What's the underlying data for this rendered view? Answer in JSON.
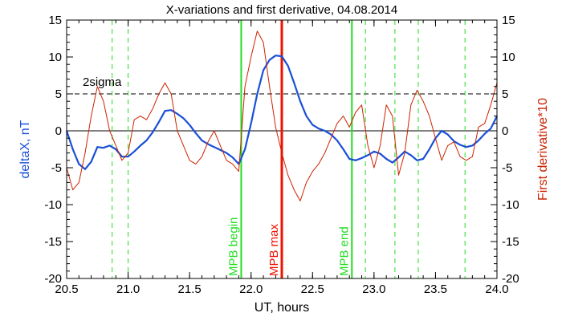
{
  "chart_data": {
    "type": "line",
    "title": "X-variations and first derivative, 04.08.2014",
    "xlabel": "UT, hours",
    "ylabel_left": "deltaX, nT",
    "ylabel_right": "First derivative*10",
    "xlim": [
      20.5,
      24.0
    ],
    "ylim": [
      -20,
      15
    ],
    "x_ticks": [
      "20.5",
      "21.0",
      "21.5",
      "22.0",
      "22.5",
      "23.0",
      "23.5",
      "24.0"
    ],
    "y_ticks": [
      "15",
      "10",
      "5",
      "0",
      "-5",
      "-10",
      "-15",
      "-20"
    ],
    "colors": {
      "deltaX": "#1a4fd6",
      "derivative": "#cc2200",
      "mpb_lines": "#22dd22",
      "mpb_max": "#ee1100",
      "axes": "#000000"
    },
    "sigma_level": 5,
    "sigma_label": "2sigma",
    "zero_line": 0,
    "series": [
      {
        "key": "deltaX",
        "axis": "left",
        "x": [
          20.5,
          20.55,
          20.6,
          20.65,
          20.7,
          20.75,
          20.8,
          20.85,
          20.9,
          20.95,
          21.0,
          21.05,
          21.1,
          21.15,
          21.2,
          21.25,
          21.3,
          21.35,
          21.4,
          21.45,
          21.5,
          21.55,
          21.6,
          21.65,
          21.7,
          21.75,
          21.8,
          21.85,
          21.9,
          21.95,
          22.0,
          22.05,
          22.1,
          22.15,
          22.2,
          22.25,
          22.3,
          22.35,
          22.4,
          22.45,
          22.5,
          22.55,
          22.6,
          22.65,
          22.7,
          22.75,
          22.8,
          22.85,
          22.9,
          22.95,
          23.0,
          23.05,
          23.1,
          23.15,
          23.2,
          23.25,
          23.3,
          23.35,
          23.4,
          23.45,
          23.5,
          23.55,
          23.6,
          23.65,
          23.7,
          23.75,
          23.8,
          23.85,
          23.9,
          23.95,
          24.0
        ],
        "values": [
          0.0,
          -2.5,
          -4.5,
          -5.2,
          -4.2,
          -2.2,
          -2.3,
          -2.0,
          -2.5,
          -3.5,
          -3.5,
          -2.8,
          -2.0,
          -1.3,
          -0.2,
          1.2,
          2.7,
          2.8,
          2.3,
          1.7,
          0.8,
          -0.3,
          -1.3,
          -1.8,
          -2.2,
          -2.6,
          -3.0,
          -3.6,
          -4.5,
          -2.5,
          1.0,
          5.0,
          8.2,
          9.6,
          10.2,
          10.1,
          8.8,
          6.5,
          4.0,
          2.0,
          0.8,
          0.3,
          0.0,
          -0.5,
          -1.3,
          -2.5,
          -3.8,
          -4.0,
          -3.7,
          -3.3,
          -2.8,
          -3.1,
          -3.8,
          -4.3,
          -3.6,
          -2.8,
          -3.3,
          -4.0,
          -3.8,
          -2.5,
          -1.0,
          0.0,
          -0.5,
          -1.4,
          -1.9,
          -2.2,
          -2.0,
          -1.3,
          -0.4,
          0.3,
          2.0
        ]
      },
      {
        "key": "derivative",
        "axis": "right",
        "x": [
          20.5,
          20.55,
          20.6,
          20.65,
          20.7,
          20.75,
          20.8,
          20.85,
          20.9,
          20.95,
          21.0,
          21.05,
          21.1,
          21.15,
          21.2,
          21.25,
          21.3,
          21.35,
          21.4,
          21.45,
          21.5,
          21.55,
          21.6,
          21.65,
          21.7,
          21.75,
          21.8,
          21.85,
          21.9,
          21.95,
          22.0,
          22.05,
          22.1,
          22.15,
          22.2,
          22.25,
          22.3,
          22.35,
          22.4,
          22.45,
          22.5,
          22.55,
          22.6,
          22.65,
          22.7,
          22.75,
          22.8,
          22.85,
          22.9,
          22.95,
          23.0,
          23.05,
          23.1,
          23.15,
          23.2,
          23.25,
          23.3,
          23.35,
          23.4,
          23.45,
          23.5,
          23.55,
          23.6,
          23.65,
          23.7,
          23.75,
          23.8,
          23.85,
          23.9,
          23.95,
          24.0
        ],
        "values": [
          -5.0,
          -8.0,
          -7.0,
          -3.0,
          2.0,
          6.0,
          4.0,
          0.0,
          -2.0,
          -4.0,
          -3.0,
          1.5,
          2.0,
          1.5,
          3.0,
          5.0,
          6.5,
          5.0,
          0.0,
          -2.0,
          -4.0,
          -4.5,
          -3.5,
          -1.5,
          0.0,
          -2.0,
          -4.0,
          -4.5,
          -5.5,
          6.0,
          10.0,
          13.5,
          12.0,
          6.0,
          0.5,
          -3.0,
          -6.0,
          -8.0,
          -9.5,
          -7.0,
          -5.5,
          -4.5,
          -3.0,
          -1.0,
          1.0,
          2.0,
          0.5,
          2.5,
          3.5,
          -2.0,
          -5.0,
          -2.0,
          3.5,
          2.0,
          -6.0,
          -3.0,
          3.5,
          5.5,
          4.0,
          2.0,
          -1.0,
          -4.0,
          -2.0,
          -1.5,
          -3.5,
          -4.0,
          -3.5,
          0.5,
          1.0,
          3.5,
          6.5
        ]
      }
    ],
    "vertical_lines": [
      {
        "x": 21.92,
        "style": "solid",
        "color_key": "mpb_lines",
        "label": "MPB begin",
        "width": 2
      },
      {
        "x": 22.25,
        "style": "solid",
        "color_key": "mpb_max",
        "label": "MPB max",
        "width": 3
      },
      {
        "x": 22.82,
        "style": "solid",
        "color_key": "mpb_lines",
        "label": "MPB end",
        "width": 2
      },
      {
        "x": 20.87,
        "style": "dashed",
        "color_key": "mpb_lines",
        "label": ""
      },
      {
        "x": 21.0,
        "style": "dashed",
        "color_key": "mpb_lines",
        "label": ""
      },
      {
        "x": 22.93,
        "style": "dashed",
        "color_key": "mpb_lines",
        "label": ""
      },
      {
        "x": 23.17,
        "style": "dashed",
        "color_key": "mpb_lines",
        "label": ""
      },
      {
        "x": 23.36,
        "style": "dashed",
        "color_key": "mpb_lines",
        "label": ""
      },
      {
        "x": 23.74,
        "style": "dashed",
        "color_key": "mpb_lines",
        "label": ""
      }
    ]
  }
}
